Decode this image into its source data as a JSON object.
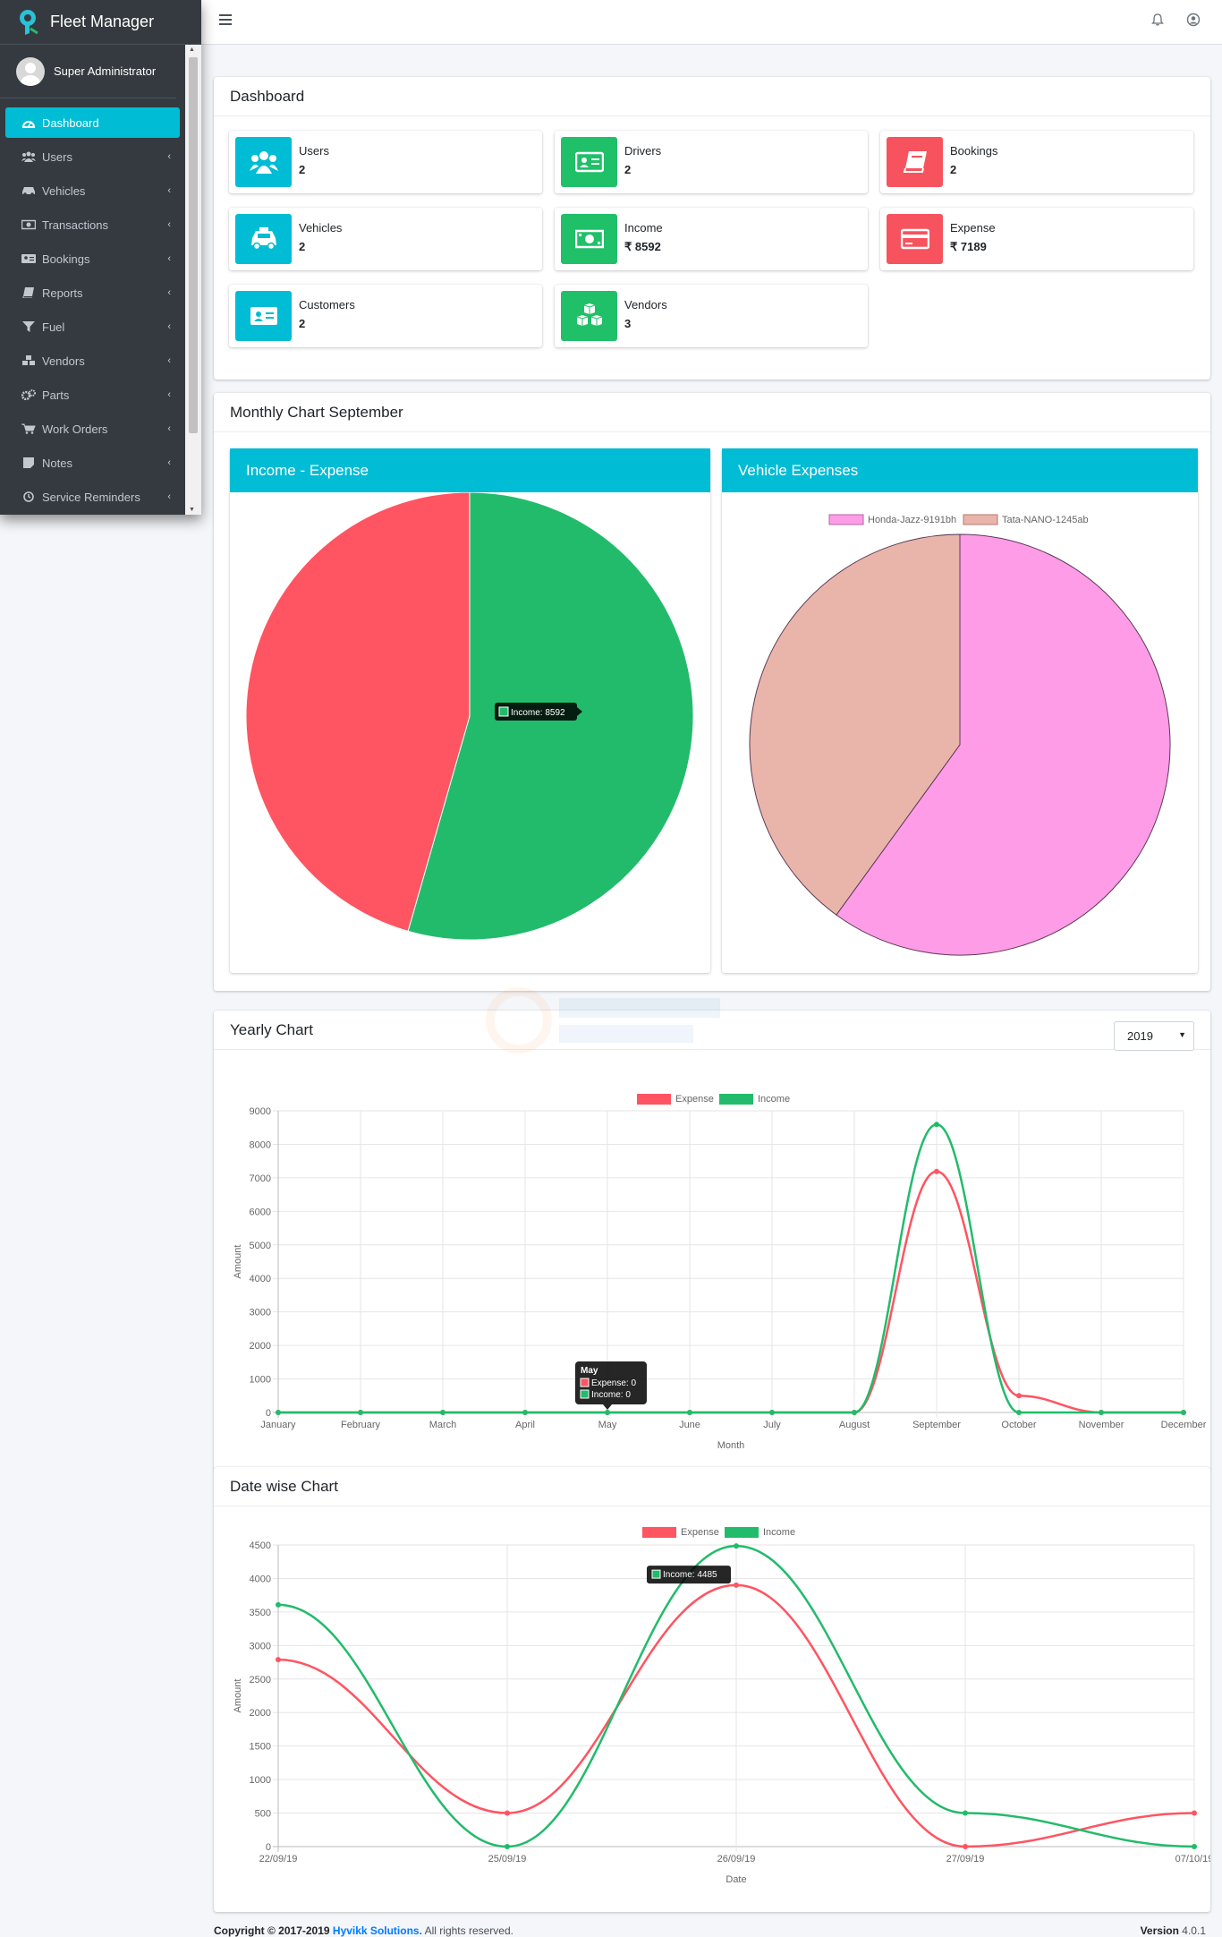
{
  "app": {
    "title": "Fleet Manager"
  },
  "user": {
    "name": "Super Administrator"
  },
  "sidebar": {
    "items": [
      {
        "label": "Dashboard",
        "icon": "dashboard-icon",
        "active": true
      },
      {
        "label": "Users",
        "icon": "users-icon"
      },
      {
        "label": "Vehicles",
        "icon": "car-icon"
      },
      {
        "label": "Transactions",
        "icon": "money-icon"
      },
      {
        "label": "Bookings",
        "icon": "address-card-icon"
      },
      {
        "label": "Reports",
        "icon": "book-icon"
      },
      {
        "label": "Fuel",
        "icon": "filter-icon"
      },
      {
        "label": "Vendors",
        "icon": "cubes-icon"
      },
      {
        "label": "Parts",
        "icon": "cogs-icon"
      },
      {
        "label": "Work Orders",
        "icon": "cart-icon"
      },
      {
        "label": "Notes",
        "icon": "note-icon"
      },
      {
        "label": "Service Reminders",
        "icon": "clock-icon"
      }
    ]
  },
  "dashboard": {
    "title": "Dashboard",
    "boxes": [
      {
        "label": "Users",
        "value": "2",
        "icon": "users-icon",
        "color": "#00bcd4"
      },
      {
        "label": "Drivers",
        "value": "2",
        "icon": "id-card-icon",
        "color": "#20c069"
      },
      {
        "label": "Bookings",
        "value": "2",
        "icon": "book-icon",
        "color": "#f7535f"
      },
      {
        "label": "Vehicles",
        "value": "2",
        "icon": "taxi-icon",
        "color": "#00bcd4"
      },
      {
        "label": "Income",
        "value": "₹ 8592",
        "icon": "money-icon",
        "color": "#20c069"
      },
      {
        "label": "Expense",
        "value": "₹ 7189",
        "icon": "credit-card-icon",
        "color": "#f7535f"
      },
      {
        "label": "Customers",
        "value": "2",
        "icon": "address-card-icon",
        "color": "#00bcd4"
      },
      {
        "label": "Vendors",
        "value": "3",
        "icon": "cubes-icon",
        "color": "#20c069"
      }
    ]
  },
  "monthly": {
    "title": "Monthly Chart September",
    "income_expense_title": "Income - Expense",
    "vehicle_expenses_title": "Vehicle Expenses"
  },
  "yearly": {
    "title": "Yearly Chart",
    "year": "2019"
  },
  "datewise": {
    "title": "Date wise Chart"
  },
  "footer": {
    "copyright": "Copyright © 2017-2019",
    "company": "Hyvikk Solutions.",
    "rights": "All rights reserved.",
    "version_label": "Version",
    "version": "4.0.1"
  },
  "chart_data": [
    {
      "type": "pie",
      "categories": [
        "Expense",
        "Income"
      ],
      "values": [
        7189,
        8592
      ],
      "colors": [
        "#ff5461",
        "#22bb6b"
      ],
      "tooltip": "Income: 8592"
    },
    {
      "type": "pie",
      "categories": [
        "Honda-Jazz-9191bh",
        "Tata-NANO-1245ab"
      ],
      "values": [
        60,
        40
      ],
      "colors": [
        "#ff9ce8",
        "#e9b5ab"
      ],
      "legend": "top"
    },
    {
      "type": "line",
      "categories": [
        "January",
        "February",
        "March",
        "April",
        "May",
        "June",
        "July",
        "August",
        "September",
        "October",
        "November",
        "December"
      ],
      "series": [
        {
          "name": "Expense",
          "color": "#ff5461",
          "values": [
            0,
            0,
            0,
            0,
            0,
            0,
            0,
            0,
            7189,
            500,
            0,
            0
          ]
        },
        {
          "name": "Income",
          "color": "#22bb6b",
          "values": [
            0,
            0,
            0,
            0,
            0,
            0,
            0,
            0,
            8592,
            0,
            0,
            0
          ]
        }
      ],
      "xlabel": "Month",
      "ylabel": "Amount",
      "ylim": [
        0,
        9000
      ],
      "yticks": [
        0,
        1000,
        2000,
        3000,
        4000,
        5000,
        6000,
        7000,
        8000,
        9000
      ],
      "tooltip": {
        "title": "May",
        "lines": [
          "Expense: 0",
          "Income: 0"
        ]
      },
      "legend": "top",
      "grid": true
    },
    {
      "type": "line",
      "categories": [
        "22/09/19",
        "25/09/19",
        "26/09/19",
        "27/09/19",
        "07/10/19"
      ],
      "series": [
        {
          "name": "Expense",
          "color": "#ff5461",
          "values": [
            2789,
            500,
            3900,
            0,
            500
          ]
        },
        {
          "name": "Income",
          "color": "#22bb6b",
          "values": [
            3607,
            0,
            4485,
            500,
            0
          ]
        }
      ],
      "xlabel": "Date",
      "ylabel": "Amount",
      "ylim": [
        0,
        4500
      ],
      "yticks": [
        0,
        500,
        1000,
        1500,
        2000,
        2500,
        3000,
        3500,
        4000,
        4500
      ],
      "tooltip": {
        "lines": [
          "Income: 4485"
        ]
      },
      "legend": "top",
      "grid": true
    }
  ]
}
